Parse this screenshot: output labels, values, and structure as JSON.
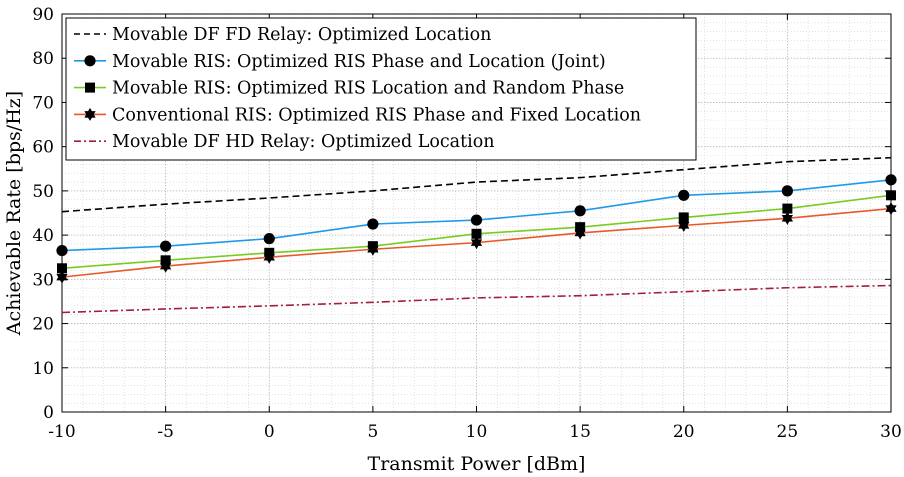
{
  "chart_data": {
    "type": "line",
    "xlabel": "Transmit Power [dBm]",
    "ylabel": "Achievable Rate [bps/Hz]",
    "xlim": [
      -10,
      30
    ],
    "ylim": [
      0,
      90
    ],
    "x": [
      -10,
      -5,
      0,
      5,
      10,
      15,
      20,
      25,
      30
    ],
    "x_tick_labels": [
      "-10",
      "-5",
      "0",
      "5",
      "10",
      "15",
      "20",
      "25",
      "30"
    ],
    "y_ticks": [
      0,
      10,
      20,
      30,
      40,
      50,
      60,
      70,
      80,
      90
    ],
    "y_tick_labels": [
      "0",
      "10",
      "20",
      "30",
      "40",
      "50",
      "60",
      "70",
      "80",
      "90"
    ],
    "grid": true,
    "minor_grid": true,
    "legend_position": "top-left",
    "series": [
      {
        "name": "Movable DF FD Relay: Optimized Location",
        "values": [
          45.3,
          47.0,
          48.4,
          50.0,
          52.0,
          53.0,
          54.8,
          56.6,
          57.5
        ],
        "color": "#000000",
        "line_style": "dashed",
        "marker": "none"
      },
      {
        "name": "Movable RIS: Optimized RIS Phase and Location (Joint)",
        "values": [
          36.5,
          37.5,
          39.2,
          42.5,
          43.4,
          45.5,
          49.0,
          50.0,
          52.5
        ],
        "color": "#1f9ae8",
        "line_style": "solid",
        "marker": "circle"
      },
      {
        "name": "Movable RIS: Optimized RIS Location and Random Phase",
        "values": [
          32.5,
          34.3,
          36.0,
          37.5,
          40.3,
          41.8,
          44.0,
          46.0,
          49.0
        ],
        "color": "#77cc22",
        "line_style": "solid",
        "marker": "square"
      },
      {
        "name": "Conventional RIS: Optimized RIS Phase and Fixed Location",
        "values": [
          30.5,
          33.0,
          35.0,
          36.8,
          38.3,
          40.5,
          42.2,
          43.8,
          46.0
        ],
        "color": "#e8592a",
        "line_style": "solid",
        "marker": "hexagram"
      },
      {
        "name": "Movable DF HD Relay: Optimized Location",
        "values": [
          22.5,
          23.3,
          24.0,
          24.8,
          25.8,
          26.3,
          27.2,
          28.1,
          28.6
        ],
        "color": "#a0203a",
        "line_style": "dashdot",
        "marker": "none"
      }
    ]
  }
}
